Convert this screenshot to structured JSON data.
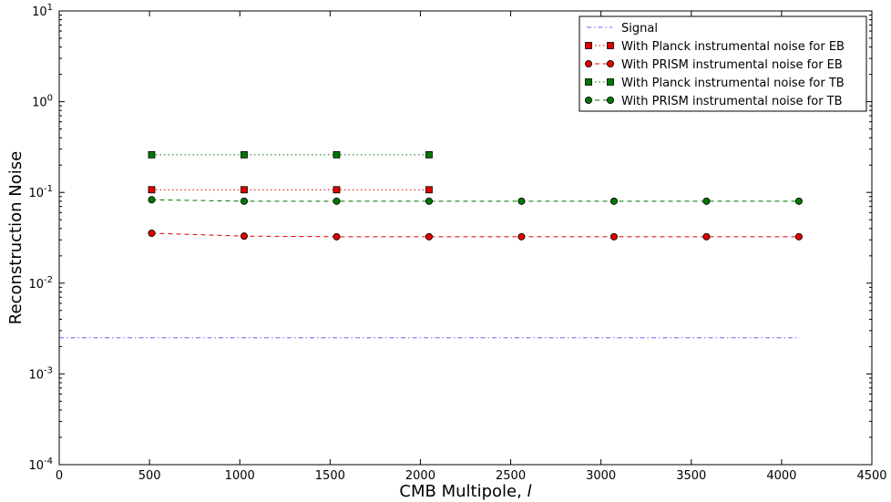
{
  "chart_data": {
    "type": "line",
    "title": "",
    "xlabel": "CMB Multipole, ",
    "xlabel_symbol": "l",
    "ylabel": "Reconstruction Noise",
    "xlim": [
      0,
      4500
    ],
    "ylim": [
      0.0001,
      10
    ],
    "yscale": "log",
    "xticks": [
      "0",
      "500",
      "1000",
      "1500",
      "2000",
      "2500",
      "3000",
      "3500",
      "4000",
      "4500"
    ],
    "yticks": [
      {
        "base": "10",
        "exp": "-4"
      },
      {
        "base": "10",
        "exp": "-3"
      },
      {
        "base": "10",
        "exp": "-2"
      },
      {
        "base": "10",
        "exp": "-1"
      },
      {
        "base": "10",
        "exp": "0"
      },
      {
        "base": "10",
        "exp": "1"
      }
    ],
    "grid": false,
    "legend_position": "top-right",
    "series": [
      {
        "name": "Signal",
        "color": "#6666ff",
        "linestyle": "dashdot",
        "marker": "none",
        "x": [
          0,
          4100
        ],
        "y": [
          0.0025,
          0.0025
        ]
      },
      {
        "name": "With Planck instrumental noise for EB",
        "color": "#dd0000",
        "linestyle": "dotted",
        "marker": "square",
        "x": [
          512,
          1024,
          1536,
          2048
        ],
        "y": [
          0.107,
          0.107,
          0.107,
          0.107
        ]
      },
      {
        "name": "With PRISM instrumental noise for EB",
        "color": "#dd0000",
        "linestyle": "dashed",
        "marker": "circle",
        "x": [
          512,
          1024,
          1536,
          2048,
          2560,
          3072,
          3584,
          4096
        ],
        "y": [
          0.0355,
          0.033,
          0.0325,
          0.0325,
          0.0325,
          0.0325,
          0.0325,
          0.0325
        ]
      },
      {
        "name": "With Planck instrumental noise for TB",
        "color": "#007700",
        "linestyle": "dotted",
        "marker": "square",
        "x": [
          512,
          1024,
          1536,
          2048
        ],
        "y": [
          0.26,
          0.26,
          0.26,
          0.26
        ]
      },
      {
        "name": "With PRISM instrumental noise for TB",
        "color": "#007700",
        "linestyle": "dashed",
        "marker": "circle",
        "x": [
          512,
          1024,
          1536,
          2048,
          2560,
          3072,
          3584,
          4096
        ],
        "y": [
          0.083,
          0.08,
          0.08,
          0.08,
          0.08,
          0.08,
          0.08,
          0.08
        ]
      }
    ]
  }
}
